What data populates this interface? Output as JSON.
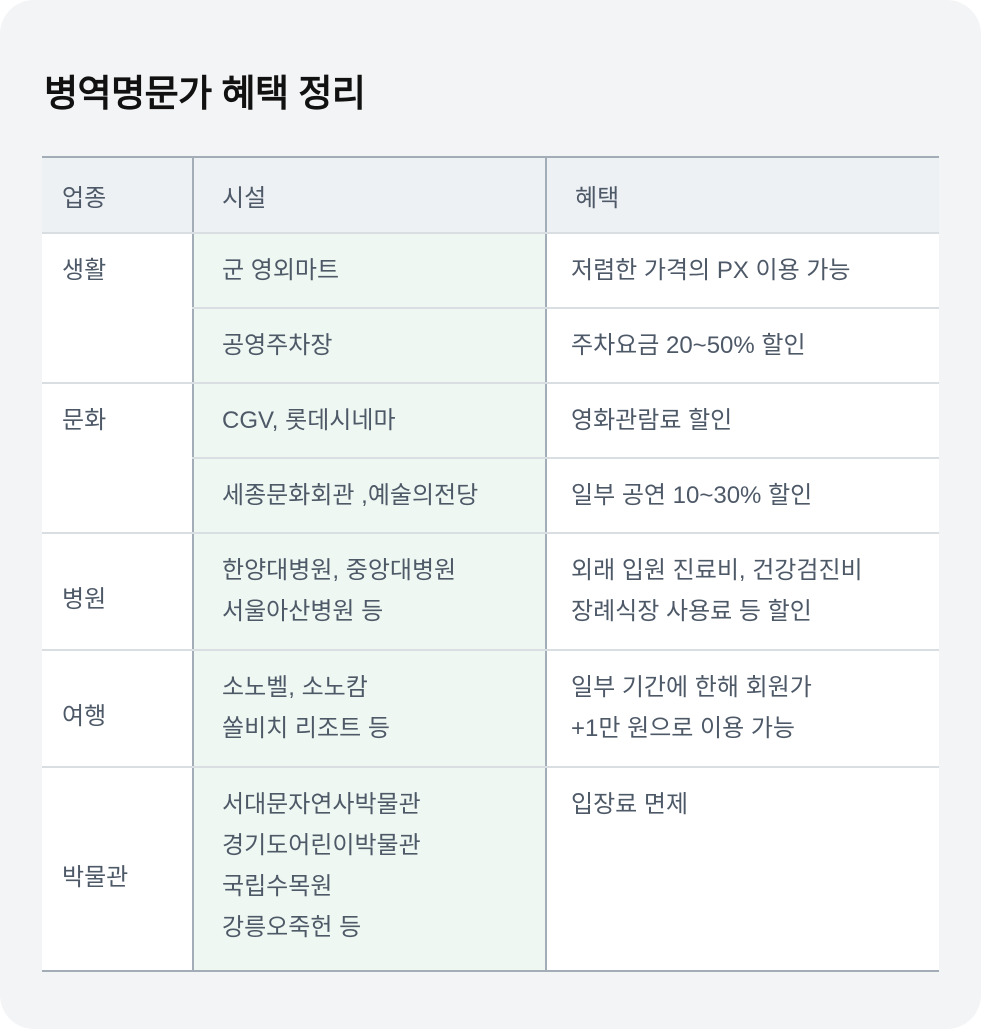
{
  "title": "병역명문가 혜택 정리",
  "columns": [
    "업종",
    "시설",
    "혜택"
  ],
  "rows": [
    {
      "category": "생활",
      "facilities": [
        [
          "군 영외마트"
        ],
        [
          "공영주차장"
        ]
      ],
      "benefits": [
        [
          "저렴한 가격의 PX 이용 가능"
        ],
        [
          "주차요금 20~50% 할인"
        ]
      ]
    },
    {
      "category": "문화",
      "facilities": [
        [
          "CGV, 롯데시네마"
        ],
        [
          "세종문화회관 ,예술의전당"
        ]
      ],
      "benefits": [
        [
          "영화관람료 할인"
        ],
        [
          "일부 공연 10~30% 할인"
        ]
      ]
    },
    {
      "category": "병원",
      "facilities": [
        [
          "한양대병원, 중앙대병원",
          "서울아산병원 등"
        ]
      ],
      "benefits": [
        [
          "외래 입원 진료비, 건강검진비",
          "장례식장 사용료 등 할인"
        ]
      ]
    },
    {
      "category": "여행",
      "facilities": [
        [
          "소노벨, 소노캄",
          "쏠비치 리조트 등"
        ]
      ],
      "benefits": [
        [
          "일부 기간에 한해 회원가",
          "+1만 원으로 이용 가능"
        ]
      ]
    },
    {
      "category": "박물관",
      "facilities": [
        [
          "서대문자연사박물관",
          "경기도어린이박물관",
          "국립수목원",
          "강릉오죽헌 등"
        ]
      ],
      "benefits": [
        [
          "입장료 면제"
        ]
      ]
    }
  ]
}
